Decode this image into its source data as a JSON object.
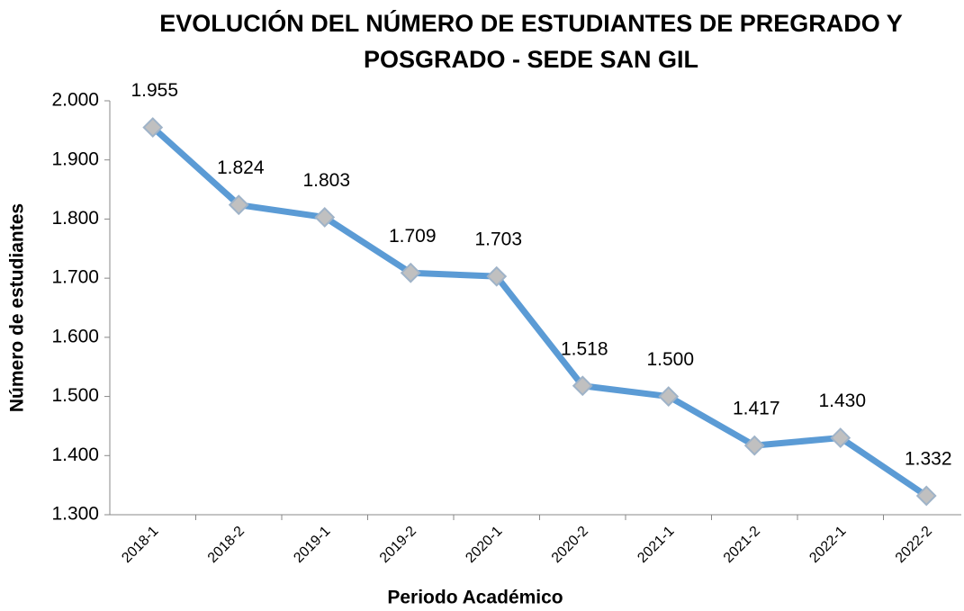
{
  "chart_data": {
    "type": "line",
    "title": [
      "EVOLUCIÓN DEL NÚMERO DE ESTUDIANTES DE PREGRADO Y",
      "POSGRADO - SEDE SAN GIL"
    ],
    "x_label": "Periodo Académico",
    "y_label": "Número de estudiantes",
    "categories": [
      "2018-1",
      "2018-2",
      "2019-1",
      "2019-2",
      "2020-1",
      "2020-2",
      "2021-1",
      "2021-2",
      "2022-1",
      "2022-2"
    ],
    "values": [
      1955,
      1824,
      1803,
      1709,
      1703,
      1518,
      1500,
      1417,
      1430,
      1332
    ],
    "value_labels": [
      "1.955",
      "1.824",
      "1.803",
      "1.709",
      "1.703",
      "1.518",
      "1.500",
      "1.417",
      "1.430",
      "1.332"
    ],
    "color": "#5b9bd5",
    "marker_color": "#c0c0c0",
    "ylim": [
      1300,
      2000
    ],
    "yticks": [
      {
        "value": 1300,
        "label": "1.300"
      },
      {
        "value": 1400,
        "label": "1.400"
      },
      {
        "value": 1500,
        "label": "1.500"
      },
      {
        "value": 1600,
        "label": "1.600"
      },
      {
        "value": 1700,
        "label": "1.700"
      },
      {
        "value": 1800,
        "label": "1.800"
      },
      {
        "value": 1900,
        "label": "1.900"
      },
      {
        "value": 2000,
        "label": "2.000"
      }
    ],
    "grid": false
  }
}
